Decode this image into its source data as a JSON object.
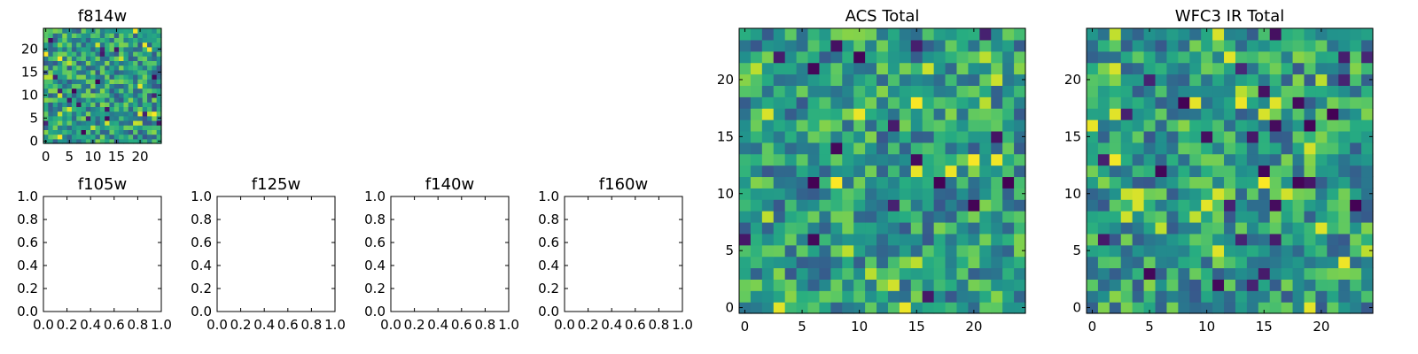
{
  "chart_data": [
    {
      "id": "f814w",
      "type": "heatmap",
      "title": "f814w",
      "colormap": "viridis",
      "grid_size": 25,
      "xlim": [
        -0.5,
        24.5
      ],
      "ylim": [
        -0.5,
        24.5
      ],
      "xticks": [
        0,
        5,
        10,
        15,
        20
      ],
      "xtick_labels": [
        "0",
        "5",
        "10",
        "15",
        "20"
      ],
      "yticks": [
        0,
        5,
        10,
        15,
        20
      ],
      "ytick_labels": [
        "0",
        "5",
        "10",
        "15",
        "20"
      ],
      "seed": 11
    },
    {
      "id": "f105w",
      "type": "empty",
      "title": "f105w",
      "xlim": [
        0,
        1
      ],
      "ylim": [
        0,
        1
      ],
      "xticks": [
        0,
        0.2,
        0.4,
        0.6,
        0.8,
        1
      ],
      "xtick_labels": [
        "0.0",
        "0.2",
        "0.4",
        "0.6",
        "0.8",
        "1.0"
      ],
      "yticks": [
        0,
        0.2,
        0.4,
        0.6,
        0.8,
        1
      ],
      "ytick_labels": [
        "0.0",
        "0.2",
        "0.4",
        "0.6",
        "0.8",
        "1.0"
      ]
    },
    {
      "id": "f125w",
      "type": "empty",
      "title": "f125w",
      "xlim": [
        0,
        1
      ],
      "ylim": [
        0,
        1
      ],
      "xticks": [
        0,
        0.2,
        0.4,
        0.6,
        0.8,
        1
      ],
      "xtick_labels": [
        "0.0",
        "0.2",
        "0.4",
        "0.6",
        "0.8",
        "1.0"
      ],
      "yticks": [
        0,
        0.2,
        0.4,
        0.6,
        0.8,
        1
      ],
      "ytick_labels": [
        "0.0",
        "0.2",
        "0.4",
        "0.6",
        "0.8",
        "1.0"
      ]
    },
    {
      "id": "f140w",
      "type": "empty",
      "title": "f140w",
      "xlim": [
        0,
        1
      ],
      "ylim": [
        0,
        1
      ],
      "xticks": [
        0,
        0.2,
        0.4,
        0.6,
        0.8,
        1
      ],
      "xtick_labels": [
        "0.0",
        "0.2",
        "0.4",
        "0.6",
        "0.8",
        "1.0"
      ],
      "yticks": [
        0,
        0.2,
        0.4,
        0.6,
        0.8,
        1
      ],
      "ytick_labels": [
        "0.0",
        "0.2",
        "0.4",
        "0.6",
        "0.8",
        "1.0"
      ]
    },
    {
      "id": "f160w",
      "type": "empty",
      "title": "f160w",
      "xlim": [
        0,
        1
      ],
      "ylim": [
        0,
        1
      ],
      "xticks": [
        0,
        0.2,
        0.4,
        0.6,
        0.8,
        1
      ],
      "xtick_labels": [
        "0.0",
        "0.2",
        "0.4",
        "0.6",
        "0.8",
        "1.0"
      ],
      "yticks": [
        0,
        0.2,
        0.4,
        0.6,
        0.8,
        1
      ],
      "ytick_labels": [
        "0.0",
        "0.2",
        "0.4",
        "0.6",
        "0.8",
        "1.0"
      ]
    },
    {
      "id": "acs-total",
      "type": "heatmap",
      "title": "ACS Total",
      "colormap": "viridis",
      "grid_size": 25,
      "xlim": [
        -0.5,
        24.5
      ],
      "ylim": [
        -0.5,
        24.5
      ],
      "xticks": [
        0,
        5,
        10,
        15,
        20
      ],
      "xtick_labels": [
        "0",
        "5",
        "10",
        "15",
        "20"
      ],
      "yticks": [
        0,
        5,
        10,
        15,
        20
      ],
      "ytick_labels": [
        "0",
        "5",
        "10",
        "15",
        "20"
      ],
      "seed": 29
    },
    {
      "id": "wfc3-ir-total",
      "type": "heatmap",
      "title": "WFC3 IR Total",
      "colormap": "viridis",
      "grid_size": 25,
      "xlim": [
        -0.5,
        24.5
      ],
      "ylim": [
        -0.5,
        24.5
      ],
      "xticks": [
        0,
        5,
        10,
        15,
        20
      ],
      "xtick_labels": [
        "0",
        "5",
        "10",
        "15",
        "20"
      ],
      "yticks": [
        0,
        5,
        10,
        15,
        20
      ],
      "ytick_labels": [
        "0",
        "5",
        "10",
        "15",
        "20"
      ],
      "seed": 53
    }
  ]
}
